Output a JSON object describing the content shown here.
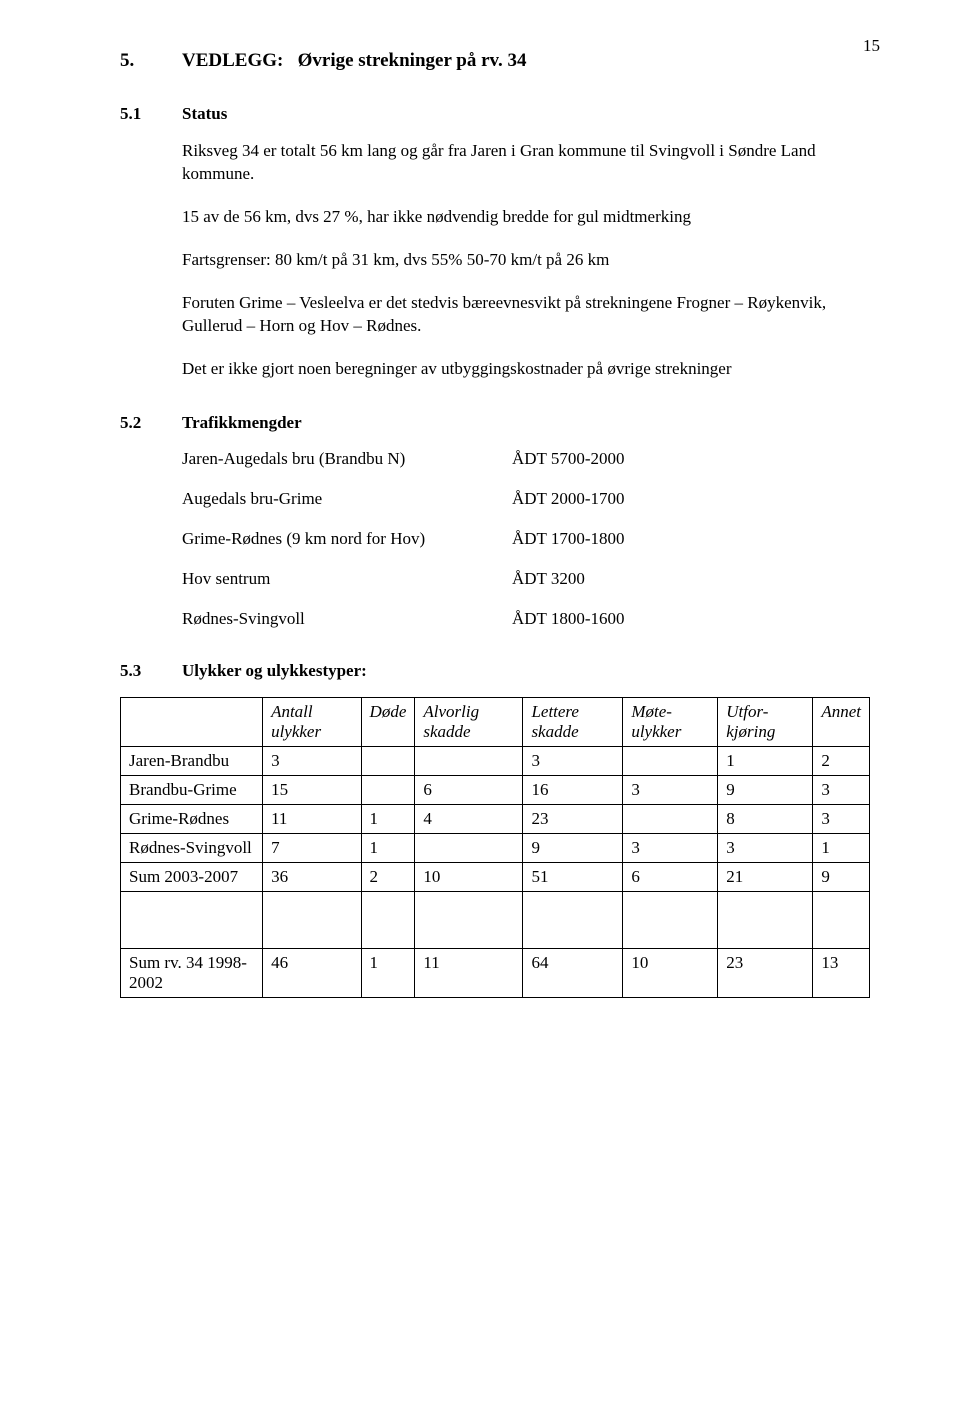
{
  "page_number": "15",
  "h1": {
    "num": "5.",
    "title_prefix": "VEDLEGG:",
    "title_main": "Øvrige strekninger på rv. 34"
  },
  "sec1": {
    "num": "5.1",
    "title": "Status",
    "p1": "Riksveg 34 er totalt 56 km lang og går fra Jaren i Gran kommune til Svingvoll i Søndre Land kommune.",
    "p2": "15 av de 56 km, dvs 27 %, har ikke nødvendig bredde for gul midtmerking",
    "p3": "Fartsgrenser:   80 km/t på 31 km, dvs 55%  50-70 km/t på 26 km",
    "p4": "Foruten Grime – Vesleelva er det stedvis bæreevnesvikt på strekningene Frogner – Røykenvik, Gullerud – Horn og Hov – Rødnes.",
    "p5": "Det er ikke gjort noen beregninger av utbyggingskostnader på øvrige strekninger"
  },
  "sec2": {
    "num": "5.2",
    "title": "Trafikkmengder",
    "rows": [
      {
        "label": "Jaren-Augedals bru (Brandbu N)",
        "value": "ÅDT 5700-2000"
      },
      {
        "label": "Augedals bru-Grime",
        "value": "ÅDT 2000-1700"
      },
      {
        "label": "Grime-Rødnes (9 km nord for Hov)",
        "value": "ÅDT 1700-1800"
      },
      {
        "label": "Hov sentrum",
        "value": "ÅDT   3200"
      },
      {
        "label": "Rødnes-Svingvoll",
        "value": "ÅDT 1800-1600"
      }
    ]
  },
  "sec3": {
    "num": "5.3",
    "title": "Ulykker og ulykkestyper:",
    "columns": [
      "",
      "Antall ulykker",
      "Døde",
      "Alvorlig skadde",
      "Lettere skadde",
      "Møte-ulykker",
      "Utfor-kjøring",
      "Annet"
    ],
    "rows": [
      [
        "Jaren-Brandbu",
        "3",
        "",
        "",
        "3",
        "",
        "1",
        "2"
      ],
      [
        "Brandbu-Grime",
        "15",
        "",
        "6",
        "16",
        "3",
        "9",
        "3"
      ],
      [
        "Grime-Rødnes",
        "11",
        "1",
        "4",
        "23",
        "",
        "8",
        "3"
      ],
      [
        "Rødnes-Svingvoll",
        "7",
        "1",
        "",
        "9",
        "3",
        "3",
        "1"
      ],
      [
        "Sum 2003-2007",
        "36",
        "2",
        "10",
        "51",
        "6",
        "21",
        "9"
      ]
    ],
    "final_row": [
      "Sum rv. 34 1998-2002",
      "46",
      "1",
      "11",
      "64",
      "10",
      "23",
      "13"
    ]
  }
}
